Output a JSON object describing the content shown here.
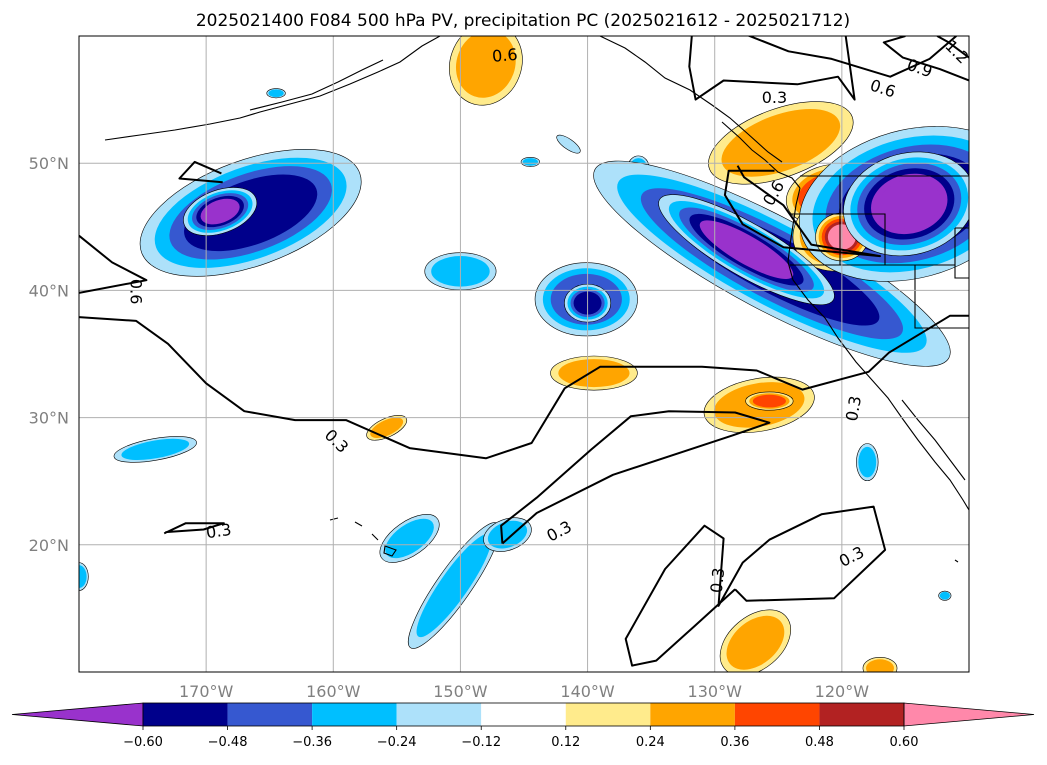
{
  "chart_data": {
    "type": "contour-map",
    "title": "2025021400 F084 500 hPa PV, precipitation PC (2025021612 - 2025021712)",
    "lon_range": [
      -180,
      -110
    ],
    "lat_range": [
      10,
      60
    ],
    "x_ticks": [
      {
        "lon": -170,
        "label": "170°W"
      },
      {
        "lon": -160,
        "label": "160°W"
      },
      {
        "lon": -150,
        "label": "150°W"
      },
      {
        "lon": -140,
        "label": "140°W"
      },
      {
        "lon": -130,
        "label": "130°W"
      },
      {
        "lon": -120,
        "label": "120°W"
      }
    ],
    "y_ticks": [
      {
        "lat": 20,
        "label": "20°N"
      },
      {
        "lat": 30,
        "label": "30°N"
      },
      {
        "lat": 40,
        "label": "40°N"
      },
      {
        "lat": 50,
        "label": "50°N"
      }
    ],
    "grid": true,
    "colorbar": {
      "orientation": "horizontal",
      "extend": "both",
      "levels": [
        -0.72,
        -0.6,
        -0.48,
        -0.36,
        -0.24,
        -0.12,
        0.12,
        0.24,
        0.36,
        0.48,
        0.6,
        0.72
      ],
      "colors": [
        "#9932CC",
        "#00008B",
        "#3658D0",
        "#00BFFF",
        "#ADE1FA",
        "#FFFFFF",
        "#FFEB8C",
        "#FFA500",
        "#FF4500",
        "#B22222",
        "#FF88AA"
      ],
      "tick_labels": [
        "−0.60",
        "−0.48",
        "−0.36",
        "−0.24",
        "−0.12",
        "0.12",
        "0.24",
        "0.36",
        "0.48",
        "0.60"
      ],
      "tick_values": [
        -0.6,
        -0.48,
        -0.36,
        -0.24,
        -0.12,
        0.12,
        0.24,
        0.36,
        0.48,
        0.6
      ]
    },
    "pv_contours": [
      {
        "level": 0.3,
        "label": "0.3",
        "path": [
          [
            -180,
            37.9
          ],
          [
            -175.5,
            37.6
          ],
          [
            -173,
            35.8
          ],
          [
            -170,
            32.7
          ],
          [
            -167,
            30.5
          ],
          [
            -163,
            29.8
          ],
          [
            -159,
            29.8
          ],
          [
            -154,
            27.6
          ],
          [
            -148,
            26.8
          ],
          [
            -144.4,
            28.0
          ],
          [
            -141.8,
            32.3
          ],
          [
            -139,
            34.0
          ],
          [
            -131,
            34.0
          ],
          [
            -126.7,
            33.7
          ],
          [
            -123.1,
            32.2
          ],
          [
            -117.9,
            33.6
          ],
          [
            -116.3,
            35.1
          ],
          [
            -111.5,
            38.0
          ],
          [
            -110,
            38.0
          ]
        ]
      },
      {
        "level": 0.3,
        "label": "0.3",
        "path": [
          [
            -146.7,
            20.1
          ],
          [
            -146.8,
            21.5
          ],
          [
            -144,
            23.7
          ],
          [
            -139.7,
            27.5
          ],
          [
            -136.6,
            30.1
          ],
          [
            -133.6,
            30.5
          ],
          [
            -128.4,
            30.4
          ],
          [
            -125.7,
            29.6
          ],
          [
            -128.6,
            28.6
          ],
          [
            -138,
            25.5
          ],
          [
            -144,
            22.5
          ],
          [
            -146.7,
            20.1
          ]
        ]
      },
      {
        "level": 0.3,
        "label": "0.3",
        "path": [
          [
            -128.4,
            16.5
          ],
          [
            -131.6,
            13.6
          ],
          [
            -134.6,
            10.9
          ],
          [
            -136.5,
            10.5
          ],
          [
            -137.0,
            12.6
          ],
          [
            -133.9,
            18.1
          ],
          [
            -130.8,
            21.5
          ],
          [
            -129.3,
            20.5
          ],
          [
            -129.7,
            15.2
          ],
          [
            -127.8,
            18.6
          ],
          [
            -125.7,
            20.4
          ],
          [
            -121.6,
            22.4
          ],
          [
            -117.5,
            23.0
          ],
          [
            -116.6,
            19.6
          ],
          [
            -120.6,
            15.8
          ],
          [
            -127.5,
            15.6
          ],
          [
            -128.4,
            16.5
          ]
        ]
      },
      {
        "level": 0.3,
        "label": "0.3",
        "path": [
          [
            -173.3,
            20.9
          ],
          [
            -171.6,
            21.7
          ],
          [
            -168.6,
            21.7
          ],
          [
            -170.2,
            21.2
          ],
          [
            -173.2,
            21.0
          ]
        ]
      },
      {
        "level": 0.6,
        "label": "0.6",
        "path": [
          [
            -180,
            44.3
          ],
          [
            -177.4,
            42.2
          ],
          [
            -174.7,
            40.8
          ],
          [
            -180,
            39.8
          ]
        ]
      },
      {
        "level": 0.6,
        "label": "0.6",
        "path": [
          [
            -168.7,
            48.5
          ],
          [
            -172.1,
            48.8
          ],
          [
            -170.9,
            50.1
          ],
          [
            -168.8,
            49.2
          ]
        ]
      },
      {
        "level": 0.6,
        "label": "0.6",
        "path": [
          [
            -128.2,
            49.8
          ],
          [
            -127.7,
            48.9
          ],
          [
            -124.6,
            46.7
          ],
          [
            -122.4,
            43.6
          ],
          [
            -117.0,
            42.7
          ],
          [
            -124.6,
            43.4
          ],
          [
            -127.8,
            45.2
          ],
          [
            -129.2,
            47.5
          ],
          [
            -128.9,
            49.4
          ],
          [
            -125.3,
            49.4
          ]
        ]
      },
      {
        "level": 0.3,
        "label": "0.3",
        "path": [
          [
            -119.7,
            60
          ],
          [
            -119.0,
            55.0
          ],
          [
            -120.3,
            56.8
          ],
          [
            -123.5,
            56.2
          ],
          [
            -129.3,
            56.5
          ],
          [
            -131.5,
            55.0
          ],
          [
            -132.0,
            57.6
          ],
          [
            -131.8,
            60
          ]
        ]
      },
      {
        "level": 0.6,
        "label": "0.6",
        "path": [
          [
            -111.0,
            60
          ],
          [
            -113.1,
            58.2
          ],
          [
            -116.2,
            56.8
          ],
          [
            -120.8,
            58.2
          ],
          [
            -124.2,
            58.8
          ],
          [
            -129.8,
            61.0
          ]
        ]
      },
      {
        "level": 0.9,
        "label": "0.9",
        "path": [
          [
            -110,
            56.5
          ],
          [
            -112.3,
            57.4
          ],
          [
            -115.2,
            58.3
          ],
          [
            -116.7,
            59.5
          ],
          [
            -115.0,
            60
          ]
        ]
      },
      {
        "level": 1.2,
        "label": "1.2",
        "path": [
          [
            -110,
            58.3
          ],
          [
            -111.6,
            59.5
          ],
          [
            -112.5,
            60
          ]
        ]
      }
    ],
    "contour_labels": [
      {
        "text": "0.6",
        "lon": -146.5,
        "lat": 58.4,
        "angle": -5
      },
      {
        "text": "0.3",
        "lon": -125.3,
        "lat": 55.1,
        "angle": 0
      },
      {
        "text": "0.9",
        "lon": -113.9,
        "lat": 57.4,
        "angle": 20
      },
      {
        "text": "0.6",
        "lon": -116.8,
        "lat": 55.8,
        "angle": 18
      },
      {
        "text": "1.2",
        "lon": -111.0,
        "lat": 58.7,
        "angle": 45
      },
      {
        "text": "0.6",
        "lon": -125.3,
        "lat": 47.6,
        "angle": -60
      },
      {
        "text": "0.6",
        "lon": -175.6,
        "lat": 39.9,
        "angle": 90
      },
      {
        "text": "0.3",
        "lon": -159.8,
        "lat": 28.1,
        "angle": 45
      },
      {
        "text": "0.3",
        "lon": -169.0,
        "lat": 21.0,
        "angle": -8
      },
      {
        "text": "0.3",
        "lon": -142.2,
        "lat": 21.0,
        "angle": -28
      },
      {
        "text": "0.3",
        "lon": -129.7,
        "lat": 17.2,
        "angle": -84
      },
      {
        "text": "0.3",
        "lon": -119.2,
        "lat": 19.0,
        "angle": -27
      },
      {
        "text": "0.3",
        "lon": -119.0,
        "lat": 30.7,
        "angle": -80
      }
    ],
    "precip_fields": [
      {
        "lon": -166.5,
        "lat": 46.1,
        "rx": 5.5,
        "ry": 2.5,
        "value": -0.48,
        "rotate": -20
      },
      {
        "lon": -168.9,
        "lat": 46.2,
        "rx": 1.6,
        "ry": 0.9,
        "value": -0.6,
        "rotate": -20
      },
      {
        "lon": -114.5,
        "lat": 46.8,
        "rx": 4.8,
        "ry": 3.1,
        "value": -0.6,
        "rotate": -15
      },
      {
        "lon": -114.7,
        "lat": 46.8,
        "rx": 2.5,
        "ry": 1.9,
        "value": -0.72,
        "rotate": -15
      },
      {
        "lon": -125.5,
        "lat": 42.1,
        "rx": 9.5,
        "ry": 2.2,
        "value": -0.48,
        "rotate": 28
      },
      {
        "lon": -127.5,
        "lat": 43.2,
        "rx": 4.2,
        "ry": 1.1,
        "value": -0.6,
        "rotate": 30
      },
      {
        "lon": -140.1,
        "lat": 39.3,
        "rx": 2.8,
        "ry": 2.0,
        "value": -0.36,
        "rotate": 0
      },
      {
        "lon": -140.0,
        "lat": 39.0,
        "rx": 1.1,
        "ry": 0.9,
        "value": -0.48,
        "rotate": 0
      },
      {
        "lon": -150.0,
        "lat": 41.5,
        "rx": 2.3,
        "ry": 1.2,
        "value": -0.24,
        "rotate": 0
      },
      {
        "lon": -174.0,
        "lat": 27.5,
        "rx": 2.7,
        "ry": 0.7,
        "value": -0.24,
        "rotate": -10
      },
      {
        "lon": -154.0,
        "lat": 20.5,
        "rx": 2.2,
        "ry": 1.1,
        "value": -0.24,
        "rotate": -35
      },
      {
        "lon": -150.5,
        "lat": 16.8,
        "rx": 4.9,
        "ry": 1.1,
        "value": -0.24,
        "rotate": -55
      },
      {
        "lon": -146.3,
        "lat": 20.8,
        "rx": 1.6,
        "ry": 1.0,
        "value": -0.24,
        "rotate": -20
      },
      {
        "lon": -118.0,
        "lat": 26.5,
        "rx": 0.7,
        "ry": 1.2,
        "value": -0.24,
        "rotate": 0
      },
      {
        "lon": -124.8,
        "lat": 51.6,
        "rx": 4.9,
        "ry": 2.2,
        "value": 0.24,
        "rotate": -20
      },
      {
        "lon": -121.3,
        "lat": 47.6,
        "rx": 2.2,
        "ry": 1.5,
        "value": 0.36,
        "rotate": -20
      },
      {
        "lon": -119.8,
        "lat": 44.8,
        "rx": 2.5,
        "ry": 1.9,
        "value": 0.48,
        "rotate": -20
      },
      {
        "lon": -120.0,
        "lat": 44.2,
        "rx": 1.1,
        "ry": 1.0,
        "value": 0.6,
        "rotate": 0
      },
      {
        "lon": -126.5,
        "lat": 31.0,
        "rx": 3.6,
        "ry": 1.7,
        "value": 0.24,
        "rotate": -10
      },
      {
        "lon": -125.7,
        "lat": 31.3,
        "rx": 1.3,
        "ry": 0.5,
        "value": 0.36,
        "rotate": 0
      },
      {
        "lon": -139.5,
        "lat": 33.5,
        "rx": 2.8,
        "ry": 1.1,
        "value": 0.24,
        "rotate": 0
      },
      {
        "lon": -155.8,
        "lat": 29.2,
        "rx": 1.4,
        "ry": 0.6,
        "value": 0.24,
        "rotate": -25
      },
      {
        "lon": -126.8,
        "lat": 12.3,
        "rx": 2.6,
        "ry": 1.7,
        "value": 0.24,
        "rotate": -40
      },
      {
        "lon": -117.0,
        "lat": 10.3,
        "rx": 1.1,
        "ry": 0.7,
        "value": 0.24,
        "rotate": 0
      },
      {
        "lon": -148.0,
        "lat": 57.8,
        "rx": 2.3,
        "ry": 2.7,
        "value": 0.24,
        "rotate": 20
      },
      {
        "lon": -164.5,
        "lat": 55.5,
        "rx": 0.6,
        "ry": 0.3,
        "value": -0.24,
        "rotate": 0
      },
      {
        "lon": -144.5,
        "lat": 50.1,
        "rx": 0.6,
        "ry": 0.3,
        "value": -0.24,
        "rotate": 0
      },
      {
        "lon": -141.5,
        "lat": 51.5,
        "rx": 1.1,
        "ry": 0.4,
        "value": -0.12,
        "rotate": 35
      },
      {
        "lon": -136.0,
        "lat": 49.6,
        "rx": 0.7,
        "ry": 0.8,
        "value": -0.24,
        "rotate": 0
      },
      {
        "lon": -180.0,
        "lat": 17.5,
        "rx": 0.6,
        "ry": 0.9,
        "value": -0.24,
        "rotate": 0
      },
      {
        "lon": -111.9,
        "lat": 16.0,
        "rx": 0.4,
        "ry": 0.3,
        "value": -0.24,
        "rotate": 0
      }
    ]
  }
}
